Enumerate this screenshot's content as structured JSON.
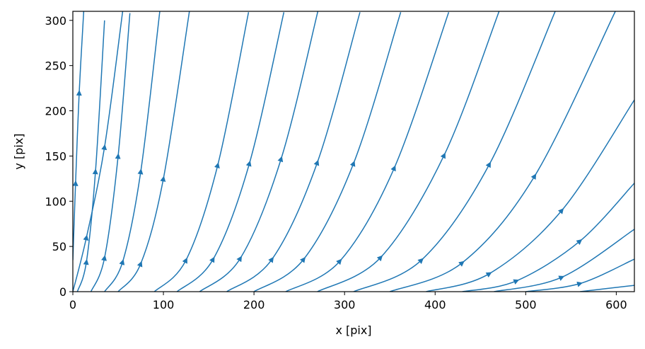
{
  "chart_data": {
    "type": "streamplot",
    "xlabel": "x [pix]",
    "ylabel": "y [pix]",
    "xlim": [
      0,
      620
    ],
    "ylim": [
      0,
      310
    ],
    "xticks": [
      0,
      100,
      200,
      300,
      400,
      500,
      600
    ],
    "yticks": [
      0,
      50,
      100,
      150,
      200,
      250,
      300
    ],
    "color": "#1f77b4",
    "streamlines": [
      {
        "x": [
          0,
          3,
          7,
          12
        ],
        "y": [
          35,
          120,
          220,
          310
        ]
      },
      {
        "x": [
          0,
          15,
          35,
          55
        ],
        "y": [
          0,
          60,
          160,
          310
        ]
      },
      {
        "x": [
          5,
          15,
          25,
          35
        ],
        "y": [
          0,
          33,
          133,
          300
        ]
      },
      {
        "x": [
          20,
          35,
          50,
          63
        ],
        "y": [
          0,
          37.5,
          150,
          308
        ]
      },
      {
        "x": [
          35,
          55,
          75,
          96
        ],
        "y": [
          0,
          33,
          133,
          310
        ]
      },
      {
        "x": [
          50,
          75,
          100,
          129
        ],
        "y": [
          0,
          31,
          125,
          312
        ]
      },
      {
        "x": [
          90,
          125,
          160,
          194
        ],
        "y": [
          0,
          35,
          140,
          309
        ]
      },
      {
        "x": [
          115,
          155,
          195,
          233
        ],
        "y": [
          0,
          36,
          142,
          309
        ]
      },
      {
        "x": [
          140,
          185,
          230,
          271
        ],
        "y": [
          0,
          37,
          147,
          312
        ]
      },
      {
        "x": [
          170,
          220,
          270,
          317
        ],
        "y": [
          0,
          36,
          143,
          309
        ]
      },
      {
        "x": [
          200,
          255,
          310,
          362
        ],
        "y": [
          0,
          36,
          142,
          309
        ]
      },
      {
        "x": [
          235,
          295,
          355,
          415
        ],
        "y": [
          0,
          34,
          137,
          309
        ]
      },
      {
        "x": [
          270,
          340,
          410,
          471
        ],
        "y": [
          0,
          38,
          151,
          311
        ]
      },
      {
        "x": [
          310,
          385,
          460,
          533
        ],
        "y": [
          0,
          35,
          141,
          311
        ]
      },
      {
        "x": [
          350,
          430,
          510,
          599
        ],
        "y": [
          0,
          32,
          128,
          310
        ]
      },
      {
        "x": [
          390,
          460,
          540,
          620
        ],
        "y": [
          0,
          20,
          90,
          212
        ]
      },
      {
        "x": [
          430,
          490,
          560,
          620
        ],
        "y": [
          0,
          12,
          56,
          120
        ]
      },
      {
        "x": [
          465,
          540,
          620
        ],
        "y": [
          0,
          16,
          69
        ]
      },
      {
        "x": [
          500,
          560,
          620
        ],
        "y": [
          0,
          9,
          36
        ]
      },
      {
        "x": [
          560,
          620
        ],
        "y": [
          0,
          7
        ]
      }
    ]
  }
}
